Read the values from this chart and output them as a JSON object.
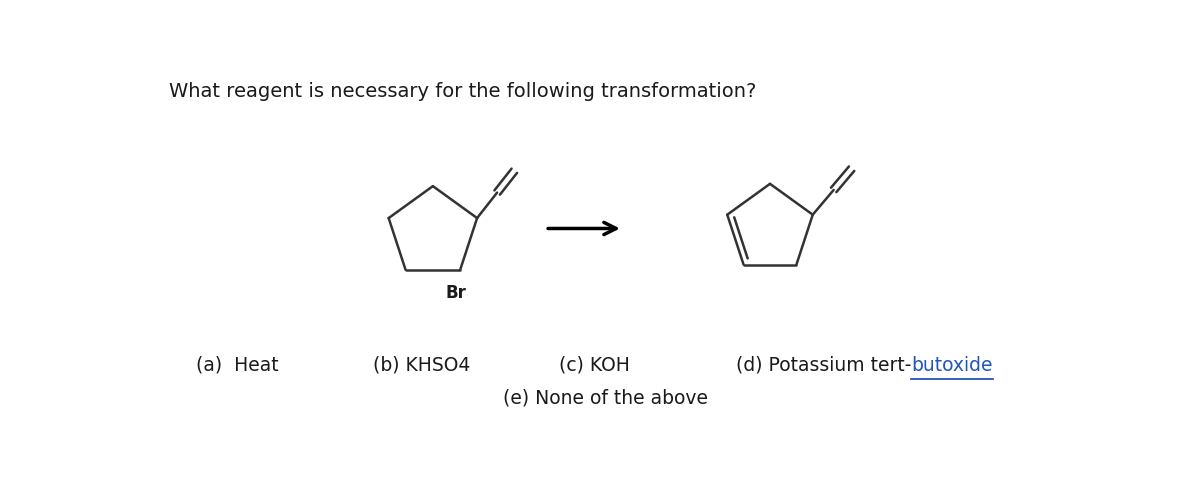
{
  "title": "What reagent is necessary for the following transformation?",
  "bg_color": "#ffffff",
  "answer_a": "(a)  Heat",
  "answer_b": "(b) KHSO4",
  "answer_c": "(c) KOH",
  "answer_d_prefix": "(d) Potassium tert-",
  "answer_d_suffix": "butoxide",
  "answer_e": "(e) None of the above",
  "answer_fontsize": 13.5,
  "br_label": "Br",
  "line_color": "#333333",
  "line_width": 1.8,
  "underline_color": "#2255bb"
}
